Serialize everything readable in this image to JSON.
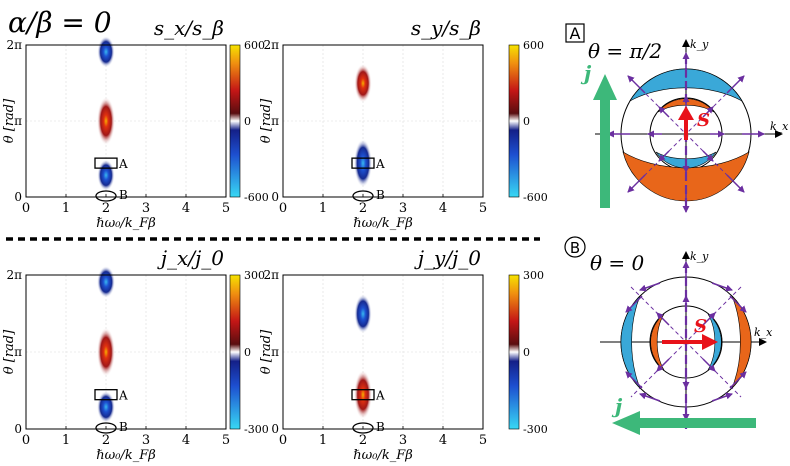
{
  "figure": {
    "title": "α/β = 0",
    "x_axis_label": "ℏω₀/k_Fβ",
    "y_axis_label": "θ [rad]",
    "x_ticks": [
      "0",
      "1",
      "2",
      "3",
      "4",
      "5"
    ],
    "y_ticks": [
      "0",
      "π",
      "2π"
    ],
    "marker_rect_label": "A",
    "marker_ellipse_label": "B"
  },
  "chart_data": [
    {
      "type": "heatmap",
      "title": "s_x/s_β",
      "xlim": [
        0,
        5
      ],
      "ylim": [
        0,
        6.2832
      ],
      "colorbar": {
        "min": -600,
        "max": 600,
        "ticks": [
          "600",
          "0",
          "-600"
        ]
      },
      "features": [
        {
          "x": 2.0,
          "y": 6.0,
          "value": -500,
          "y_extent": 1.3
        },
        {
          "x": 2.0,
          "y": 3.14,
          "value": 600,
          "y_extent": 2.0
        },
        {
          "x": 2.0,
          "y": 0.9,
          "value": -500,
          "y_extent": 1.3
        }
      ],
      "markers": [
        {
          "label": "A",
          "shape": "rect",
          "x": 2.0,
          "y": 1.4
        },
        {
          "label": "B",
          "shape": "ellipse",
          "x": 2.0,
          "y": 0.0
        }
      ]
    },
    {
      "type": "heatmap",
      "title": "s_y/s_β",
      "xlim": [
        0,
        5
      ],
      "ylim": [
        0,
        6.2832
      ],
      "colorbar": {
        "min": -600,
        "max": 600,
        "ticks": [
          "600",
          "0",
          "-600"
        ]
      },
      "features": [
        {
          "x": 2.0,
          "y": 4.7,
          "value": 500,
          "y_extent": 1.6
        },
        {
          "x": 2.0,
          "y": 1.4,
          "value": -600,
          "y_extent": 2.0
        }
      ],
      "markers": [
        {
          "label": "A",
          "shape": "rect",
          "x": 2.0,
          "y": 1.4
        },
        {
          "label": "B",
          "shape": "ellipse",
          "x": 2.0,
          "y": 0.0
        }
      ]
    },
    {
      "type": "heatmap",
      "title": "j_x/j_0",
      "xlim": [
        0,
        5
      ],
      "ylim": [
        0,
        6.2832
      ],
      "colorbar": {
        "min": -300,
        "max": 300,
        "ticks": [
          "300",
          "0",
          "-300"
        ]
      },
      "features": [
        {
          "x": 2.0,
          "y": 6.0,
          "value": -300,
          "y_extent": 1.3
        },
        {
          "x": 2.0,
          "y": 3.14,
          "value": 300,
          "y_extent": 2.0
        },
        {
          "x": 2.0,
          "y": 0.9,
          "value": -300,
          "y_extent": 1.3
        }
      ],
      "markers": [
        {
          "label": "A",
          "shape": "rect",
          "x": 2.0,
          "y": 1.4
        },
        {
          "label": "B",
          "shape": "ellipse",
          "x": 2.0,
          "y": 0.0
        }
      ]
    },
    {
      "type": "heatmap",
      "title": "j_y/j_0",
      "xlim": [
        0,
        5
      ],
      "ylim": [
        0,
        6.2832
      ],
      "colorbar": {
        "min": -300,
        "max": 300,
        "ticks": [
          "300",
          "0",
          "-300"
        ]
      },
      "features": [
        {
          "x": 2.0,
          "y": 4.7,
          "value": -250,
          "y_extent": 1.6
        },
        {
          "x": 2.0,
          "y": 1.4,
          "value": 300,
          "y_extent": 2.0
        }
      ],
      "markers": [
        {
          "label": "A",
          "shape": "rect",
          "x": 2.0,
          "y": 1.4
        },
        {
          "label": "B",
          "shape": "ellipse",
          "x": 2.0,
          "y": 0.0
        }
      ]
    }
  ],
  "schematics": [
    {
      "badge": "A",
      "angle_label": "θ = π/2",
      "kx": "k_x",
      "ky": "k_y",
      "spin": "S",
      "current": "j"
    },
    {
      "badge": "B",
      "angle_label": "θ = 0",
      "kx": "k_x",
      "ky": "k_y",
      "spin": "S",
      "current": "j"
    }
  ],
  "colors": {
    "purple": "#6b2fa0",
    "orange": "#e8661a",
    "blue": "#3aa8d8",
    "green": "#3db87a",
    "red": "#e8121a"
  }
}
